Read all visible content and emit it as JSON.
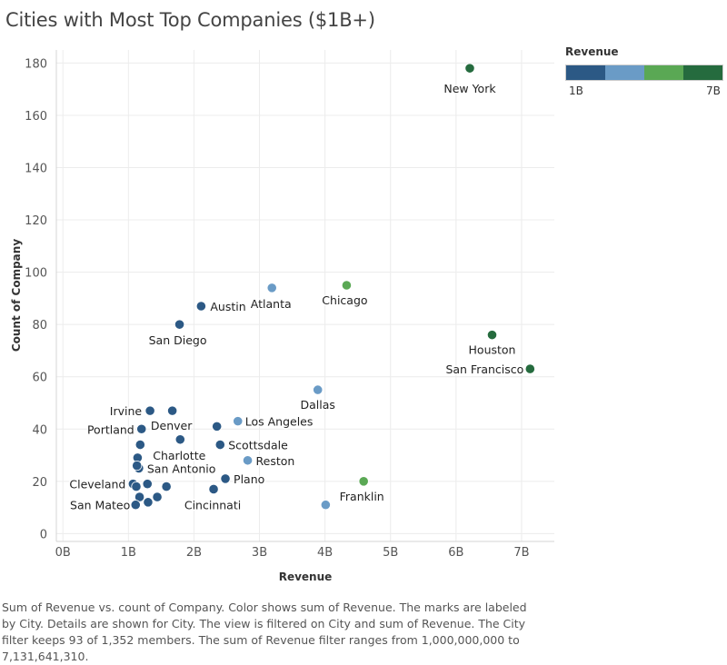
{
  "title": "Cities with Most Top Companies ($1B+)",
  "legend": {
    "title": "Revenue",
    "min_label": "1B",
    "max_label": "7B",
    "colors": [
      "#2c5985",
      "#6a9bc6",
      "#5aa854",
      "#256b3e"
    ]
  },
  "caption": "Sum of Revenue vs. count of Company.  Color shows sum of Revenue.  The marks are labeled by City.  Details are shown for City. The view is filtered on City and sum of Revenue. The City filter keeps 93 of 1,352 members. The sum of Revenue filter ranges from 1,000,000,000 to 7,131,641,310.",
  "chart_data": {
    "type": "scatter",
    "title": "Cities with Most Top Companies ($1B+)",
    "xlabel": "Revenue",
    "ylabel": "Count of Company",
    "xlim": [
      -0.1,
      7.5
    ],
    "ylim": [
      -3,
      185
    ],
    "xticks": [
      0,
      1,
      2,
      3,
      4,
      5,
      6,
      7
    ],
    "xtick_labels": [
      "0B",
      "1B",
      "2B",
      "3B",
      "4B",
      "5B",
      "6B",
      "7B"
    ],
    "yticks": [
      0,
      20,
      40,
      60,
      80,
      100,
      120,
      140,
      160,
      180
    ],
    "ytick_labels": [
      "0",
      "20",
      "40",
      "60",
      "80",
      "100",
      "120",
      "140",
      "160",
      "180"
    ],
    "grid": true,
    "legend_position": "top-right",
    "points": [
      {
        "label": "New York",
        "x": 6.21,
        "y": 178,
        "color": "#256b3e"
      },
      {
        "label": "Houston",
        "x": 6.55,
        "y": 76,
        "color": "#256b3e"
      },
      {
        "label": "San Francisco",
        "x": 7.13,
        "y": 63,
        "color": "#256b3e"
      },
      {
        "label": "Chicago",
        "x": 4.33,
        "y": 95,
        "color": "#5aa854"
      },
      {
        "label": "Franklin",
        "x": 4.59,
        "y": 20,
        "color": "#5aa854"
      },
      {
        "label": "Atlanta",
        "x": 3.19,
        "y": 94,
        "color": "#6a9bc6"
      },
      {
        "label": "Dallas",
        "x": 3.89,
        "y": 55,
        "color": "#6a9bc6"
      },
      {
        "label": "Los Angeles",
        "x": 2.67,
        "y": 43,
        "color": "#6a9bc6"
      },
      {
        "label": "Reston",
        "x": 2.82,
        "y": 28,
        "color": "#6a9bc6"
      },
      {
        "label": "",
        "x": 4.01,
        "y": 11,
        "color": "#6a9bc6"
      },
      {
        "label": "Austin",
        "x": 2.11,
        "y": 87,
        "color": "#2c5985"
      },
      {
        "label": "San Diego",
        "x": 1.78,
        "y": 80,
        "color": "#2c5985"
      },
      {
        "label": "Irvine",
        "x": 1.33,
        "y": 47,
        "color": "#2c5985"
      },
      {
        "label": "Denver",
        "x": 1.67,
        "y": 47,
        "color": "#2c5985"
      },
      {
        "label": "",
        "x": 2.35,
        "y": 41,
        "color": "#2c5985"
      },
      {
        "label": "Portland",
        "x": 1.2,
        "y": 40,
        "color": "#2c5985"
      },
      {
        "label": "Charlotte",
        "x": 1.79,
        "y": 36,
        "color": "#2c5985"
      },
      {
        "label": "",
        "x": 1.18,
        "y": 34,
        "color": "#2c5985"
      },
      {
        "label": "Scottsdale",
        "x": 2.4,
        "y": 34,
        "color": "#2c5985"
      },
      {
        "label": "",
        "x": 1.14,
        "y": 29,
        "color": "#2c5985"
      },
      {
        "label": "San Antonio",
        "x": 1.16,
        "y": 25,
        "color": "#2c5985"
      },
      {
        "label": "",
        "x": 1.13,
        "y": 26,
        "color": "#2c5985"
      },
      {
        "label": "Plano",
        "x": 2.48,
        "y": 21,
        "color": "#2c5985"
      },
      {
        "label": "Cleveland",
        "x": 1.07,
        "y": 19,
        "color": "#2c5985"
      },
      {
        "label": "",
        "x": 1.12,
        "y": 18,
        "color": "#2c5985"
      },
      {
        "label": "",
        "x": 1.29,
        "y": 19,
        "color": "#2c5985"
      },
      {
        "label": "",
        "x": 1.58,
        "y": 18,
        "color": "#2c5985"
      },
      {
        "label": "Cincinnati",
        "x": 2.3,
        "y": 17,
        "color": "#2c5985"
      },
      {
        "label": "",
        "x": 1.17,
        "y": 14,
        "color": "#2c5985"
      },
      {
        "label": "",
        "x": 1.44,
        "y": 14,
        "color": "#2c5985"
      },
      {
        "label": "",
        "x": 1.3,
        "y": 12,
        "color": "#2c5985"
      },
      {
        "label": "San Mateo",
        "x": 1.11,
        "y": 11,
        "color": "#2c5985"
      }
    ]
  }
}
